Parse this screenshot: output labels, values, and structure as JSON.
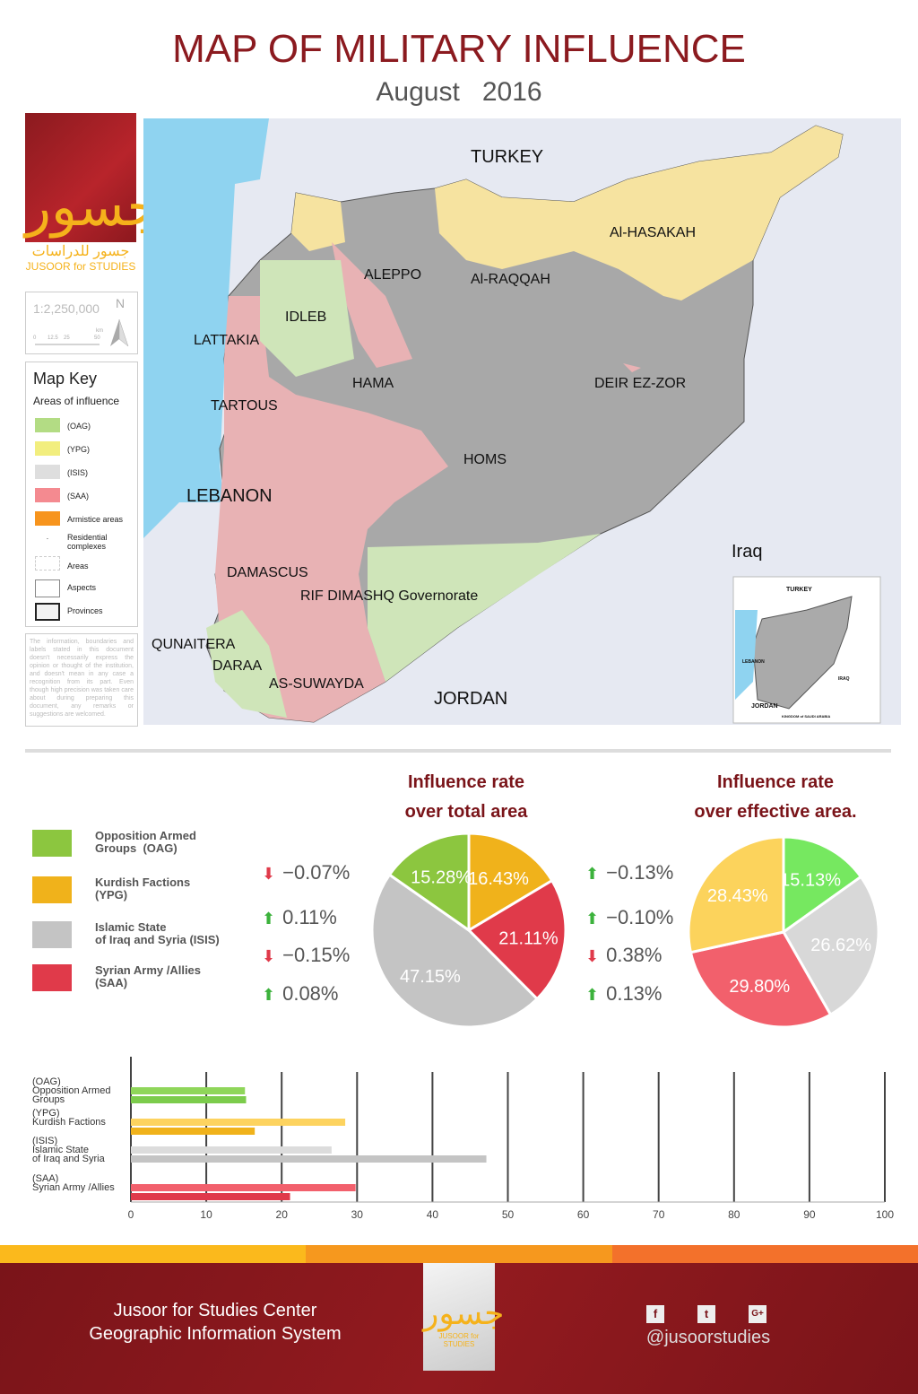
{
  "title": "MAP OF MILITARY INFLUENCE",
  "subtitle": "August   2016",
  "logo": {
    "arabic": "جسور للدراسات",
    "english": "JUSOOR for STUDIES"
  },
  "scale": {
    "ratio": "1:2,250,000",
    "north": "N",
    "ticks": [
      "0",
      "12.5",
      "25",
      "50"
    ],
    "unit": "km"
  },
  "map_key": {
    "title": "Map Key",
    "subtitle": "Areas of influence",
    "items": [
      {
        "label": "(OAG)",
        "color": "#b3dc84"
      },
      {
        "label": "(YPG)",
        "color": "#f2ee7e"
      },
      {
        "label": "(ISIS)",
        "color": "#dedede"
      },
      {
        "label": "(SAA)",
        "color": "#f48a90"
      },
      {
        "label": "Armistice areas",
        "color": "#f7941d"
      },
      {
        "label": "Residential complexes"
      },
      {
        "label": "Areas"
      },
      {
        "label": "Aspects"
      },
      {
        "label": "Provinces"
      }
    ]
  },
  "disclaimer": "The information, boundaries and labels stated in this document doesn't necessarily express the opinion or thought of the institution, and doesn't mean in any case a recognition from its part. Even though high precision was taken care about during preparing this document, any remarks or suggestions are welcomed.",
  "map_labels": {
    "turkey": "TURKEY",
    "aleppo": "ALEPPO",
    "raqqah": "Al-RAQQAH",
    "hasakah": "Al-HASAKAH",
    "idleb": "IDLEB",
    "lattakia": "LATTAKIA",
    "hama": "HAMA",
    "deir": "DEIR EZ-ZOR",
    "tartous": "TARTOUS",
    "homs": "HOMS",
    "lebanon": "LEBANON",
    "iraq": "Iraq",
    "damascus": "DAMASCUS",
    "rif": "RIF DIMASHQ Governorate",
    "quneitra": "QUNAITERA",
    "daraa": "DARAA",
    "suwayda": "AS-SUWAYDA",
    "jordan": "JORDAN"
  },
  "inset": {
    "turkey": "TURKEY",
    "lebanon": "LEBANON",
    "iraq": "IRAQ",
    "jordan": "JORDAN",
    "saudi": "KINGDOM of SAUDI ARABIA"
  },
  "factions": [
    {
      "label": "Opposition Armed\nGroups  (OAG)",
      "short": "(OAG)",
      "bar_label": "Opposition Armed\nGroups",
      "color": "#8cc63f",
      "eff_color": "#76e860",
      "bar_total": "#7ccc4c",
      "bar_eff": "#8fd65a"
    },
    {
      "label": "Kurdish Factions\n(YPG)",
      "short": "(YPG)",
      "bar_label": "Kurdish Factions",
      "color": "#f0b21b",
      "eff_color": "#fcd35c",
      "bar_total": "#f0b21b",
      "bar_eff": "#fdd35f"
    },
    {
      "label": "Islamic State\nof Iraq and Syria (ISIS)",
      "short": "(ISIS)",
      "bar_label": "Islamic State\nof Iraq and Syria",
      "color": "#c4c4c4",
      "eff_color": "#d8d8d8",
      "bar_total": "#c4c4c4",
      "bar_eff": "#dcdcdc"
    },
    {
      "label": "Syrian Army /Allies\n(SAA)",
      "short": "(SAA)",
      "bar_label": "Syrian Army /Allies",
      "color": "#e03a4a",
      "eff_color": "#f2606c",
      "bar_total": "#e03a4a",
      "bar_eff": "#f2606c"
    }
  ],
  "changes_total": [
    {
      "text": "−0.07%",
      "dir": "down"
    },
    {
      "text": "0.11%",
      "dir": "up"
    },
    {
      "text": "−0.15%",
      "dir": "down"
    },
    {
      "text": "0.08%",
      "dir": "up"
    }
  ],
  "changes_effective": [
    {
      "text": "−0.13%",
      "dir": "up"
    },
    {
      "text": "−0.10%",
      "dir": "up"
    },
    {
      "text": "0.38%",
      "dir": "down"
    },
    {
      "text": "0.13%",
      "dir": "up"
    }
  ],
  "chart_data": [
    {
      "type": "pie",
      "title": "Influence rate\nover total area",
      "categories": [
        "(OAG)",
        "(YPG)",
        "(ISIS)",
        "(SAA)"
      ],
      "values": [
        15.28,
        16.43,
        47.15,
        21.11
      ],
      "labels": [
        "15.28%",
        "16.43%",
        "47.15%",
        "21.11%"
      ]
    },
    {
      "type": "pie",
      "title": "Influence rate\nover effective area.",
      "categories": [
        "(OAG)",
        "(YPG)",
        "(ISIS)",
        "(SAA)"
      ],
      "values": [
        15.13,
        28.43,
        26.62,
        29.8
      ],
      "labels": [
        "15.13%",
        "28.43%",
        "26.62%",
        "29.80%"
      ]
    },
    {
      "type": "bar",
      "orientation": "horizontal",
      "categories": [
        "(OAG)",
        "(YPG)",
        "(ISIS)",
        "(SAA)"
      ],
      "series": [
        {
          "values": [
            15.13,
            28.43,
            26.62,
            29.8
          ]
        },
        {
          "values": [
            15.28,
            16.43,
            47.15,
            21.11
          ]
        }
      ],
      "xlim": [
        0,
        100
      ],
      "xticks": [
        "0",
        "10",
        "20",
        "30",
        "40",
        "50",
        "60",
        "70",
        "80",
        "90",
        "100"
      ],
      "grid": true
    }
  ],
  "footer": {
    "line1": "Jusoor for Studies Center",
    "line2": "Geographic Information System",
    "handle": "@jusoorstudies",
    "social": [
      "facebook-icon",
      "twitter-icon",
      "google-plus-icon"
    ],
    "stripe": [
      "#fbb91c",
      "#f6981e",
      "#f3712b"
    ]
  }
}
